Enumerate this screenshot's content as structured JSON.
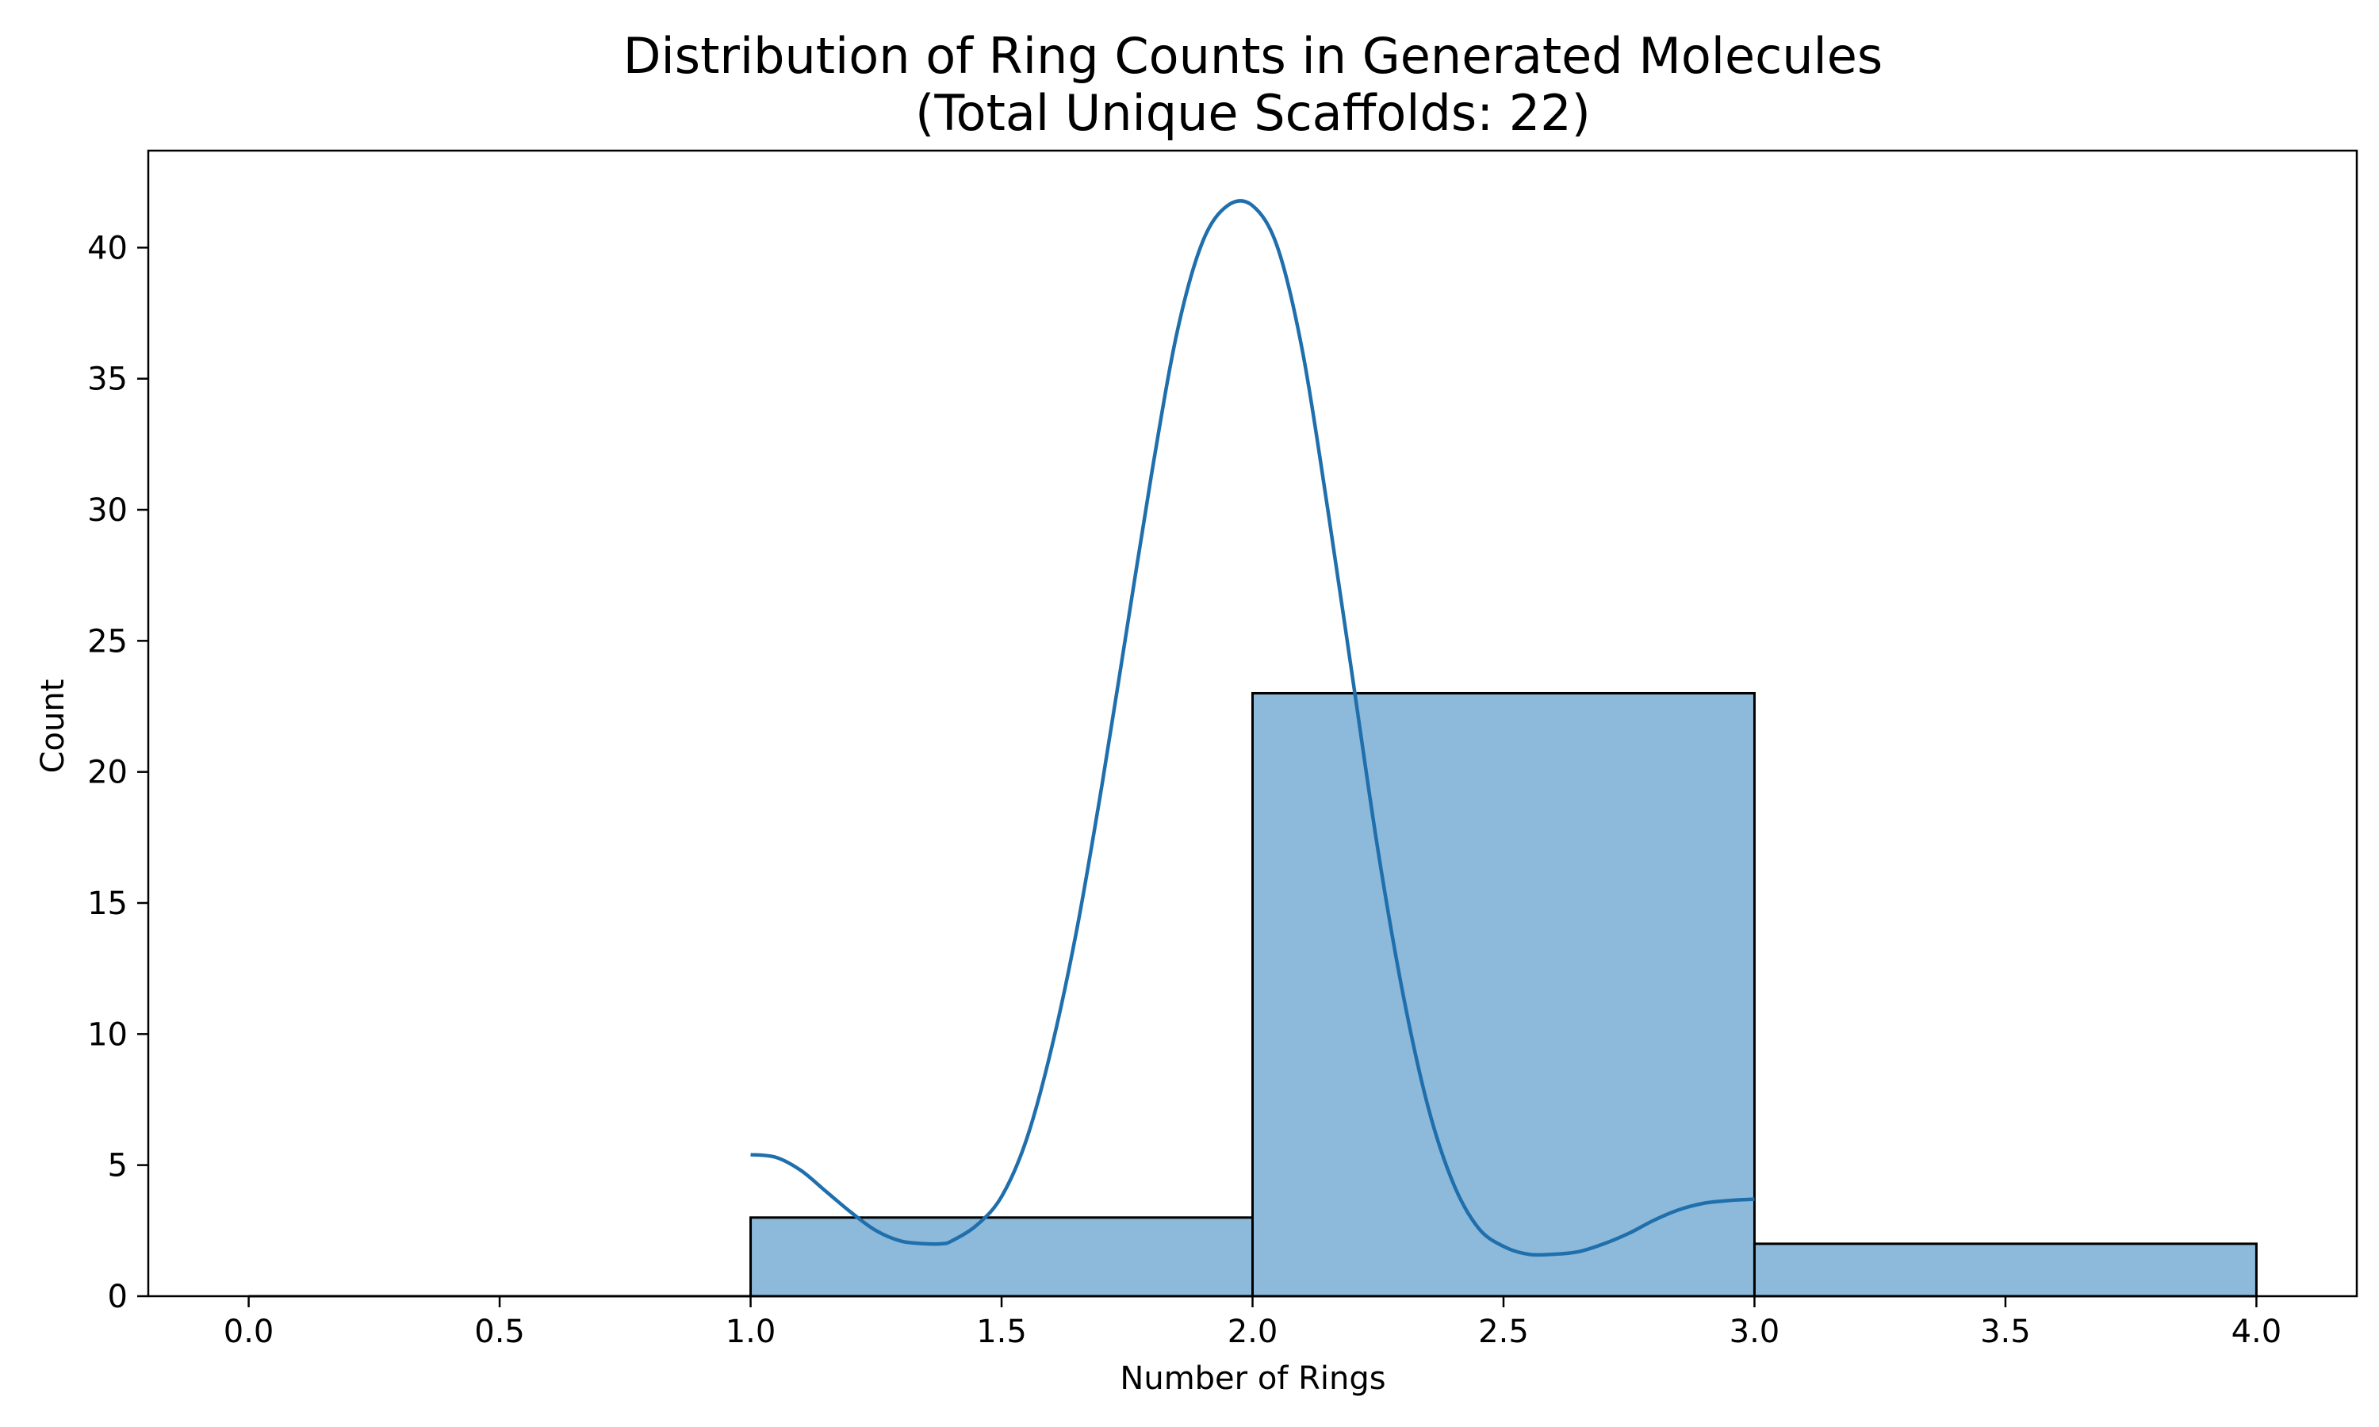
{
  "chart_data": {
    "type": "bar",
    "title_line1": "Distribution of Ring Counts in Generated Molecules",
    "title_line2": "(Total Unique Scaffolds: 22)",
    "xlabel": "Number of Rings",
    "ylabel": "Count",
    "xlim": [
      -0.2,
      4.2
    ],
    "ylim": [
      0,
      43.7
    ],
    "x_ticks": [
      "0.0",
      "0.5",
      "1.0",
      "1.5",
      "2.0",
      "2.5",
      "3.0",
      "3.5",
      "4.0"
    ],
    "y_ticks": [
      "0",
      "5",
      "10",
      "15",
      "20",
      "25",
      "30",
      "35",
      "40"
    ],
    "bins": [
      {
        "x_start": 0,
        "x_end": 1,
        "count": 0
      },
      {
        "x_start": 1,
        "x_end": 2,
        "count": 3
      },
      {
        "x_start": 2,
        "x_end": 3,
        "count": 23
      },
      {
        "x_start": 3,
        "x_end": 4,
        "count": 2
      }
    ],
    "kde_curve": {
      "x": [
        1.0,
        1.05,
        1.1,
        1.15,
        1.2,
        1.25,
        1.3,
        1.35,
        1.38,
        1.4,
        1.45,
        1.5,
        1.55,
        1.6,
        1.65,
        1.7,
        1.75,
        1.8,
        1.85,
        1.9,
        1.95,
        2.0,
        2.05,
        2.1,
        2.15,
        2.2,
        2.25,
        2.3,
        2.35,
        2.4,
        2.45,
        2.5,
        2.55,
        2.6,
        2.65,
        2.7,
        2.75,
        2.8,
        2.85,
        2.9,
        2.95,
        3.0
      ],
      "y": [
        5.4,
        5.3,
        4.8,
        4.0,
        3.2,
        2.5,
        2.1,
        2.0,
        2.0,
        2.1,
        2.7,
        3.8,
        6.0,
        9.5,
        14.0,
        19.5,
        25.5,
        31.5,
        36.8,
        40.2,
        41.6,
        41.6,
        40.0,
        36.0,
        30.0,
        23.5,
        17.0,
        11.5,
        7.2,
        4.3,
        2.6,
        1.9,
        1.6,
        1.6,
        1.7,
        2.0,
        2.4,
        2.9,
        3.3,
        3.55,
        3.65,
        3.7
      ]
    },
    "colors": {
      "bar_fill": "#8db9da",
      "bar_edge": "#000000",
      "kde_line": "#1f6fad",
      "axis": "#000000"
    },
    "grid": false
  }
}
